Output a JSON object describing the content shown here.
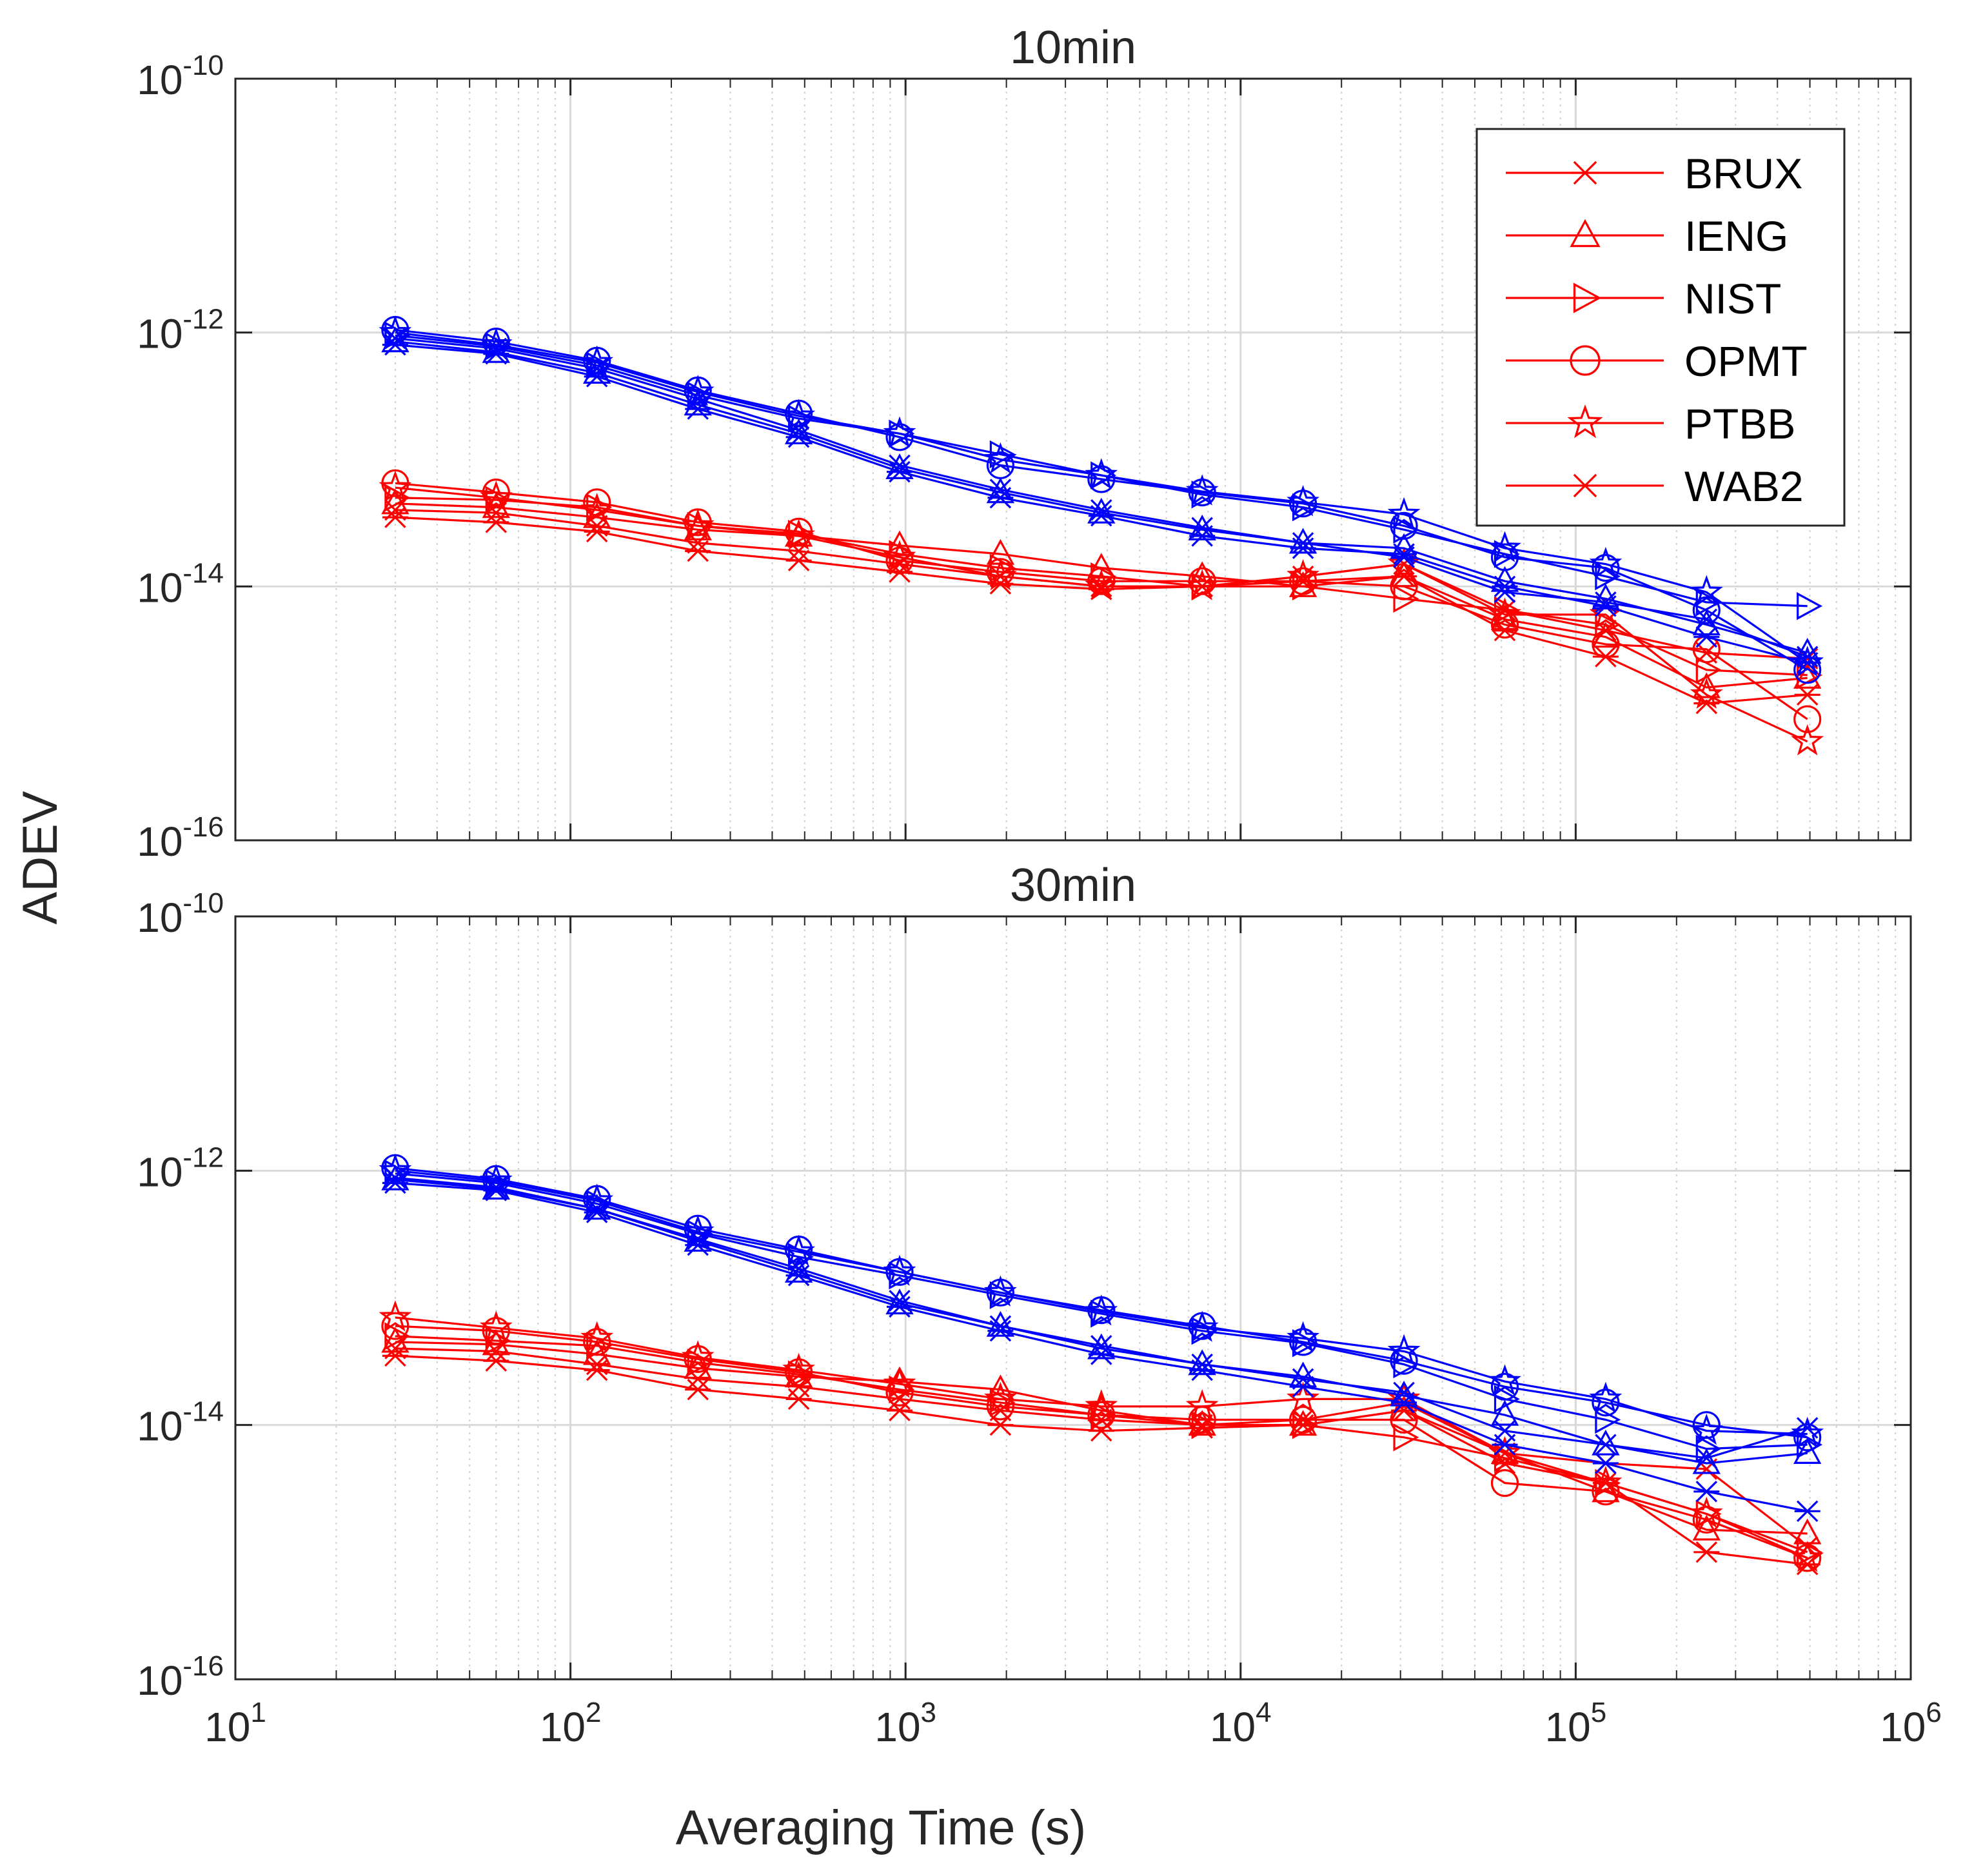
{
  "chart_data": {
    "type": "line",
    "xscale": "log",
    "yscale": "log",
    "xlabel": "Averaging Time (s)",
    "ylabel": "ADEV",
    "xlim": [
      10,
      1000000
    ],
    "ylim": [
      1e-16,
      1e-10
    ],
    "x_ticks": [
      {
        "base": "10",
        "exp": "1"
      },
      {
        "base": "10",
        "exp": "2"
      },
      {
        "base": "10",
        "exp": "3"
      },
      {
        "base": "10",
        "exp": "4"
      },
      {
        "base": "10",
        "exp": "5"
      },
      {
        "base": "10",
        "exp": "6"
      }
    ],
    "y_ticks": [
      {
        "base": "10",
        "exp": "-16"
      },
      {
        "base": "10",
        "exp": "-14"
      },
      {
        "base": "10",
        "exp": "-12"
      },
      {
        "base": "10",
        "exp": "-10"
      }
    ],
    "grid": true,
    "legend": {
      "location": "top-right (upper panel)",
      "entries": [
        {
          "label": "BRUX",
          "marker": "asterisk"
        },
        {
          "label": "IENG",
          "marker": "triangle"
        },
        {
          "label": "NIST",
          "marker": "right-triangle"
        },
        {
          "label": "OPMT",
          "marker": "circle"
        },
        {
          "label": "PTBB",
          "marker": "pentagram"
        },
        {
          "label": "WAB2",
          "marker": "cross"
        }
      ]
    },
    "x": [
      30,
      60,
      120,
      240,
      480,
      960,
      1920,
      3840,
      7680,
      15360,
      30720,
      61440,
      122880,
      245760,
      491520
    ],
    "colors": {
      "red": "#ff0000",
      "blue": "#0000ff"
    },
    "panels": [
      {
        "title": "10min",
        "series": [
          {
            "name": "BRUX",
            "color": "red",
            "marker": "asterisk",
            "values": [
              3.5e-14,
              3.2e-14,
              2.7e-14,
              1.9e-14,
              1.6e-14,
              1.3e-14,
              1.05e-14,
              9.5e-15,
              1e-14,
              1.1e-14,
              1.2e-14,
              4.5e-15,
              2.8e-15,
              1.2e-15,
              1.4e-15
            ]
          },
          {
            "name": "IENG",
            "color": "red",
            "marker": "triangle",
            "values": [
              4.5e-14,
              4.2e-14,
              3.5e-14,
              2.8e-14,
              2.5e-14,
              2.1e-14,
              1.8e-14,
              1.4e-14,
              1.2e-14,
              1e-14,
              1.2e-14,
              5.5e-15,
              4e-15,
              1.6e-15,
              1.9e-15
            ]
          },
          {
            "name": "NIST",
            "color": "red",
            "marker": "right-triangle",
            "values": [
              5e-14,
              4.8e-14,
              4.2e-14,
              3e-14,
              2.6e-14,
              1.8e-14,
              1.4e-14,
              1.2e-14,
              1e-14,
              1e-14,
              8e-15,
              6.5e-15,
              5e-15,
              2.2e-15,
              2e-15
            ]
          },
          {
            "name": "OPMT",
            "color": "red",
            "marker": "circle",
            "values": [
              6.5e-14,
              5.5e-14,
              4.6e-14,
              3.2e-14,
              2.7e-14,
              1.6e-14,
              1.3e-14,
              1.1e-14,
              1.1e-14,
              1.1e-14,
              1e-14,
              5e-15,
              3.5e-15,
              3.2e-15,
              9e-16
            ]
          },
          {
            "name": "PTBB",
            "color": "red",
            "marker": "pentagram",
            "values": [
              6e-14,
              5e-14,
              4e-14,
              3e-14,
              2.5e-14,
              1.7e-14,
              1.2e-14,
              1e-14,
              1e-14,
              1.2e-14,
              1.5e-14,
              6e-15,
              6e-15,
              1.4e-15,
              6e-16
            ]
          },
          {
            "name": "WAB2",
            "color": "red",
            "marker": "cross",
            "values": [
              4e-14,
              3.8e-14,
              3e-14,
              2.2e-14,
              1.9e-14,
              1.5e-14,
              1.2e-14,
              1e-14,
              1e-14,
              1.2e-14,
              1.5e-14,
              6.5e-15,
              4.5e-15,
              3e-15,
              2.7e-15
            ]
          },
          {
            "name": "BRUX",
            "color": "blue",
            "marker": "asterisk",
            "values": [
              8e-13,
              6.8e-13,
              4.5e-13,
              2.5e-13,
              1.5e-13,
              8e-14,
              5e-14,
              3.6e-14,
              2.5e-14,
              2e-14,
              1.8e-14,
              1e-14,
              7e-15,
              4e-15,
              2.5e-15
            ]
          },
          {
            "name": "IENG",
            "color": "blue",
            "marker": "triangle",
            "values": [
              8.5e-13,
              7e-13,
              4.8e-13,
              2.7e-13,
              1.6e-13,
              8.5e-14,
              5.5e-14,
              3.8e-14,
              2.8e-14,
              2.2e-14,
              2e-14,
              1.1e-14,
              8e-15,
              5e-15,
              3e-15
            ]
          },
          {
            "name": "NIST",
            "color": "blue",
            "marker": "right-triangle",
            "values": [
              9.5e-13,
              7.8e-13,
              5.5e-13,
              3.2e-13,
              2.1e-13,
              1.6e-13,
              1.1e-13,
              7.5e-14,
              5.3e-14,
              4.2e-14,
              2.8e-14,
              1.8e-14,
              1.2e-14,
              7.5e-15,
              7e-15
            ]
          },
          {
            "name": "OPMT",
            "color": "blue",
            "marker": "circle",
            "values": [
              1.05e-12,
              8.5e-13,
              6e-13,
              3.5e-13,
              2.3e-13,
              1.5e-13,
              9e-14,
              7e-14,
              5.5e-14,
              4.5e-14,
              3e-14,
              1.7e-14,
              1.4e-14,
              6.5e-15,
              2.2e-15
            ]
          },
          {
            "name": "PTBB",
            "color": "blue",
            "marker": "pentagram",
            "values": [
              1e-12,
              8e-13,
              5.8e-13,
              3.4e-13,
              2.2e-13,
              1.6e-13,
              1e-13,
              7.5e-14,
              5.6e-14,
              4.6e-14,
              3.7e-14,
              2e-14,
              1.5e-14,
              9e-15,
              2.5e-15
            ]
          },
          {
            "name": "WAB2",
            "color": "blue",
            "marker": "cross",
            "values": [
              9e-13,
              7.5e-13,
              5.2e-13,
              3e-13,
              1.7e-13,
              9e-14,
              5.8e-14,
              4e-14,
              2.9e-14,
              2.2e-14,
              1.7e-14,
              9e-15,
              7.5e-15,
              5.5e-15,
              2.8e-15
            ]
          }
        ]
      },
      {
        "title": "30min",
        "series": [
          {
            "name": "BRUX",
            "color": "red",
            "marker": "asterisk",
            "values": [
              3.5e-14,
              3.2e-14,
              2.7e-14,
              1.9e-14,
              1.6e-14,
              1.3e-14,
              1e-14,
              9e-15,
              9.5e-15,
              1e-14,
              1.3e-14,
              5e-15,
              3.5e-15,
              1e-15,
              8e-16
            ]
          },
          {
            "name": "IENG",
            "color": "red",
            "marker": "triangle",
            "values": [
              4.5e-14,
              4.3e-14,
              3.6e-14,
              2.8e-14,
              2.4e-14,
              2.2e-14,
              1.9e-14,
              1.3e-14,
              1e-14,
              1e-14,
              1.3e-14,
              6e-15,
              3e-15,
              1.5e-15,
              1.4e-15
            ]
          },
          {
            "name": "NIST",
            "color": "red",
            "marker": "right-triangle",
            "values": [
              5e-14,
              4.6e-14,
              4.2e-14,
              3.1e-14,
              2.5e-14,
              1.9e-14,
              1.5e-14,
              1.2e-14,
              1e-14,
              1e-14,
              8e-15,
              5.5e-15,
              3.5e-15,
              2e-15,
              1e-15
            ]
          },
          {
            "name": "OPMT",
            "color": "red",
            "marker": "circle",
            "values": [
              6e-14,
              5.5e-14,
              4.5e-14,
              3.3e-14,
              2.6e-14,
              1.8e-14,
              1.4e-14,
              1.2e-14,
              1.1e-14,
              1.1e-14,
              1.1e-14,
              3.5e-15,
              3e-15,
              1.8e-15,
              9e-16
            ]
          },
          {
            "name": "PTBB",
            "color": "red",
            "marker": "pentagram",
            "values": [
              7e-14,
              5.8e-14,
              4.8e-14,
              3.4e-14,
              2.7e-14,
              2.1e-14,
              1.6e-14,
              1.4e-14,
              1.4e-14,
              1.6e-14,
              1.6e-14,
              6e-15,
              3.5e-15,
              2e-15,
              9e-16
            ]
          },
          {
            "name": "WAB2",
            "color": "red",
            "marker": "cross",
            "values": [
              4e-14,
              3.8e-14,
              3e-14,
              2.3e-14,
              2e-14,
              1.6e-14,
              1.3e-14,
              1.1e-14,
              1e-14,
              1.1e-14,
              1.5e-14,
              6e-15,
              5e-15,
              4.5e-15,
              1.1e-15
            ]
          },
          {
            "name": "BRUX",
            "color": "blue",
            "marker": "asterisk",
            "values": [
              8e-13,
              7e-13,
              4.7e-13,
              2.6e-13,
              1.5e-13,
              8.5e-14,
              5.5e-14,
              3.6e-14,
              2.7e-14,
              2e-14,
              1.5e-14,
              7e-15,
              5e-15,
              3e-15,
              2.1e-15
            ]
          },
          {
            "name": "IENG",
            "color": "blue",
            "marker": "triangle",
            "values": [
              8.5e-13,
              7.2e-13,
              5e-13,
              2.8e-13,
              1.6e-13,
              9e-14,
              6e-14,
              4e-14,
              3e-14,
              2.4e-14,
              1.7e-14,
              1.2e-14,
              7e-15,
              5e-15,
              6e-15
            ]
          },
          {
            "name": "NIST",
            "color": "blue",
            "marker": "right-triangle",
            "values": [
              9.5e-13,
              8e-13,
              5.5e-13,
              3.2e-13,
              2.1e-13,
              1.5e-13,
              1.05e-13,
              7.5e-14,
              5.5e-14,
              4.4e-14,
              3e-14,
              1.6e-14,
              1.1e-14,
              6.5e-15,
              7e-15
            ]
          },
          {
            "name": "OPMT",
            "color": "blue",
            "marker": "circle",
            "values": [
              1.05e-12,
              8.6e-13,
              6e-13,
              3.5e-13,
              2.4e-13,
              1.6e-13,
              1.1e-13,
              8e-14,
              6e-14,
              4.5e-14,
              3.2e-14,
              2e-14,
              1.5e-14,
              1e-14,
              8e-15
            ]
          },
          {
            "name": "PTBB",
            "color": "blue",
            "marker": "pentagram",
            "values": [
              1e-12,
              8.3e-13,
              5.8e-13,
              3.3e-13,
              2.3e-13,
              1.6e-13,
              1.1e-13,
              7.8e-14,
              5.8e-14,
              4.8e-14,
              3.8e-14,
              2.2e-14,
              1.6e-14,
              9e-15,
              8.5e-15
            ]
          },
          {
            "name": "WAB2",
            "color": "blue",
            "marker": "cross",
            "values": [
              8.8e-13,
              7.4e-13,
              5e-13,
              2.9e-13,
              1.7e-13,
              9.5e-14,
              6e-14,
              4.2e-14,
              3e-14,
              2.3e-14,
              1.8e-14,
              9e-15,
              7e-15,
              5.5e-15,
              9.5e-15
            ]
          }
        ]
      }
    ]
  }
}
